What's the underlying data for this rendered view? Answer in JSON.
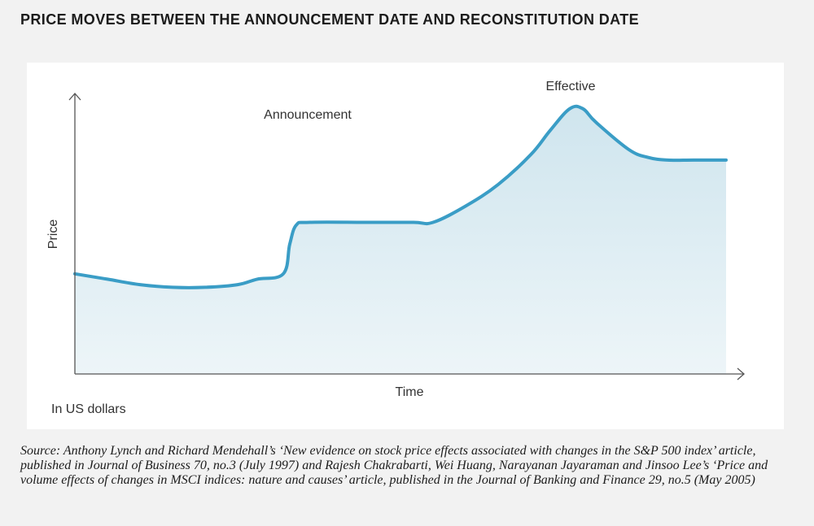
{
  "title": "PRICE MOVES BETWEEN THE ANNOUNCEMENT DATE AND RECONSTITUTION DATE",
  "units_note": "In US dollars",
  "source": "Source: Anthony Lynch and Richard Mendehall’s ‘New evidence on stock price effects associated with changes in the S&P 500 index’ article, published in Journal of Business 70, no.3 (July 1997) and Rajesh Chakrabarti, Wei Huang, Narayanan Jayaraman and Jinsoo Lee’s ‘Price and volume effects of changes in MSCI indices: nature and causes’ article, published in the Journal of Banking and Finance 29, no.5 (May 2005)",
  "colors": {
    "line": "#3a9dc6",
    "fill_top": "#cfe5ee",
    "fill_bottom": "#edf5f8",
    "axis": "#555555"
  },
  "chart_data": {
    "type": "area",
    "title": "PRICE MOVES BETWEEN THE ANNOUNCEMENT DATE AND RECONSTITUTION DATE",
    "xlabel": "Time",
    "ylabel": "Price",
    "xlim": [
      0,
      100
    ],
    "ylim": [
      0,
      100
    ],
    "grid": false,
    "legend": "none",
    "series": [
      {
        "x": [
          0,
          5,
          10,
          15,
          20,
          25,
          28,
          32,
          33,
          34,
          36,
          45,
          52,
          55,
          60,
          65,
          70,
          73,
          76,
          78,
          80,
          85,
          88,
          91,
          95,
          100
        ],
        "values": [
          37,
          35,
          33,
          32,
          32,
          33,
          35,
          37,
          48,
          55,
          56,
          56,
          56,
          56,
          62,
          70,
          81,
          90,
          98,
          98,
          93,
          83,
          80,
          79,
          79,
          79
        ]
      }
    ],
    "annotations": [
      {
        "text": "Announcement",
        "x": 36
      },
      {
        "text": "Effective",
        "x": 76
      }
    ]
  }
}
